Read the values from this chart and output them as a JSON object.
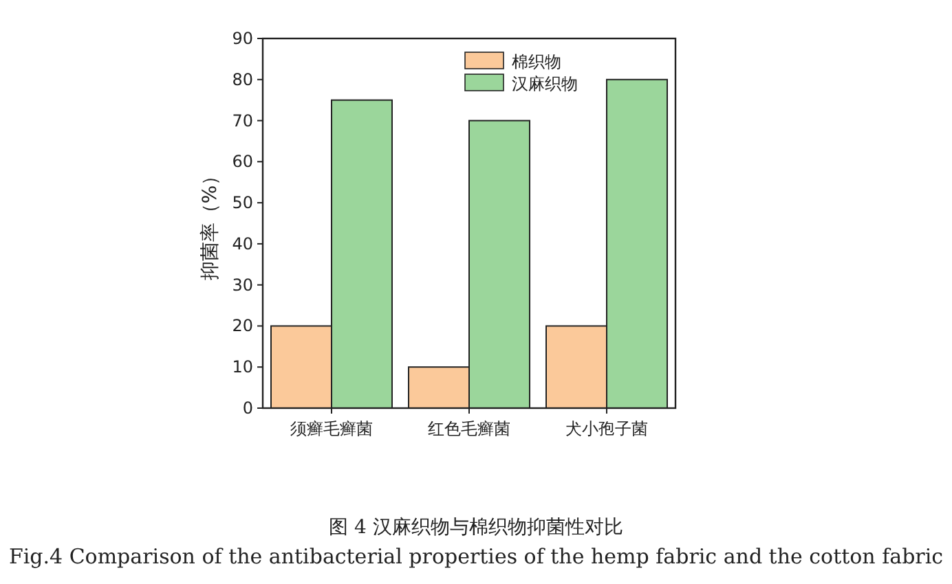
{
  "chart_data": {
    "type": "bar",
    "categories": [
      "须癣毛癣菌",
      "红色毛癣菌",
      "犬小孢子菌"
    ],
    "series": [
      {
        "name": "棉织物",
        "color": "#fbc99a",
        "values": [
          20,
          10,
          20
        ]
      },
      {
        "name": "汉麻织物",
        "color": "#9bd69b",
        "values": [
          75,
          70,
          80
        ]
      }
    ],
    "ylabel": "抑菌率（%）",
    "ylim": [
      0,
      90
    ],
    "yticks": [
      0,
      10,
      20,
      30,
      40,
      50,
      60,
      70,
      80,
      90
    ],
    "legend": "top",
    "grid": false,
    "annotations": [
      "图 4  汉麻织物与棉织物抑菌性对比",
      "Fig.4 Comparison of the antibacterial properties of the hemp fabric and the cotton fabric"
    ]
  }
}
